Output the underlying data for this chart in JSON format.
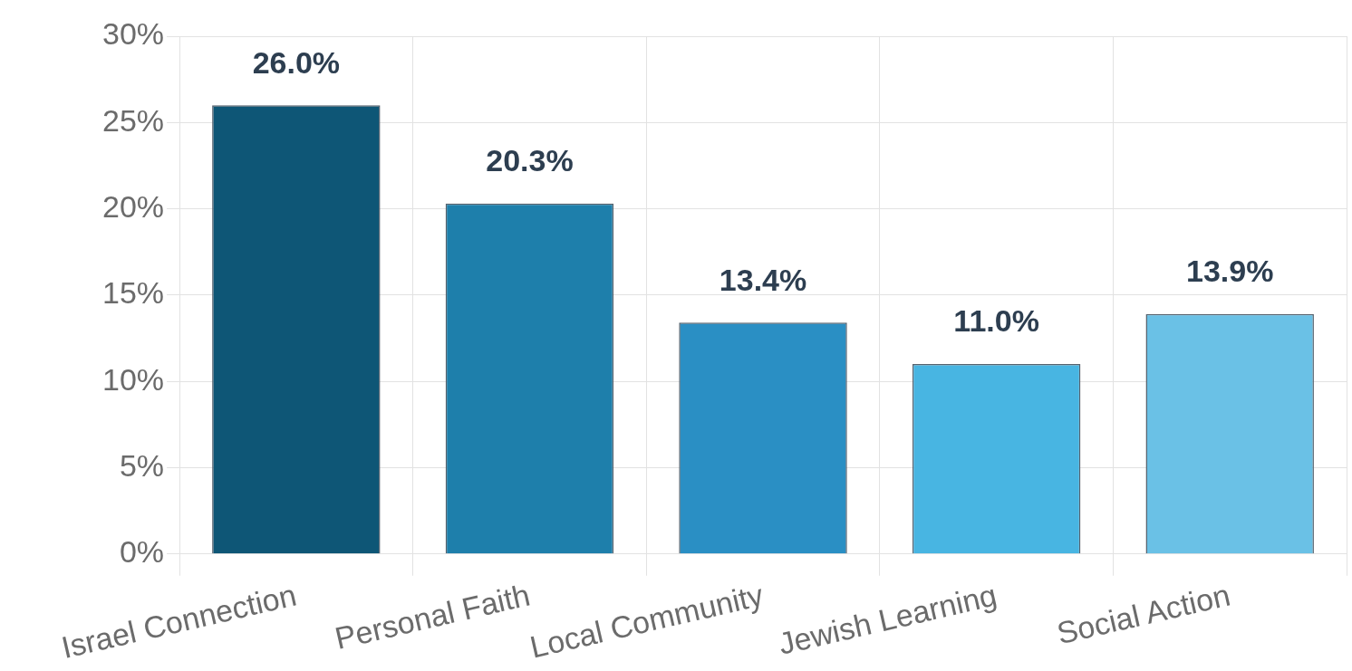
{
  "chart_data": {
    "type": "bar",
    "categories": [
      "Israel Connection",
      "Personal Faith",
      "Local Community",
      "Jewish Learning",
      "Social Action"
    ],
    "values": [
      26.0,
      20.3,
      13.4,
      11.0,
      13.9
    ],
    "colors": [
      "#0e5676",
      "#1e7fab",
      "#2a8fc4",
      "#48b5e2",
      "#6ac1e6"
    ],
    "value_labels": [
      "26.0%",
      "20.3%",
      "13.4%",
      "11.0%",
      "13.9%"
    ],
    "ylim": [
      0,
      30
    ],
    "yticks": [
      {
        "value": 0,
        "label": "0%"
      },
      {
        "value": 5,
        "label": "5%"
      },
      {
        "value": 10,
        "label": "10%"
      },
      {
        "value": 15,
        "label": "15%"
      },
      {
        "value": 20,
        "label": "20%"
      },
      {
        "value": 25,
        "label": "25%"
      },
      {
        "value": 30,
        "label": "30%"
      }
    ],
    "grid": true,
    "legend": false
  }
}
